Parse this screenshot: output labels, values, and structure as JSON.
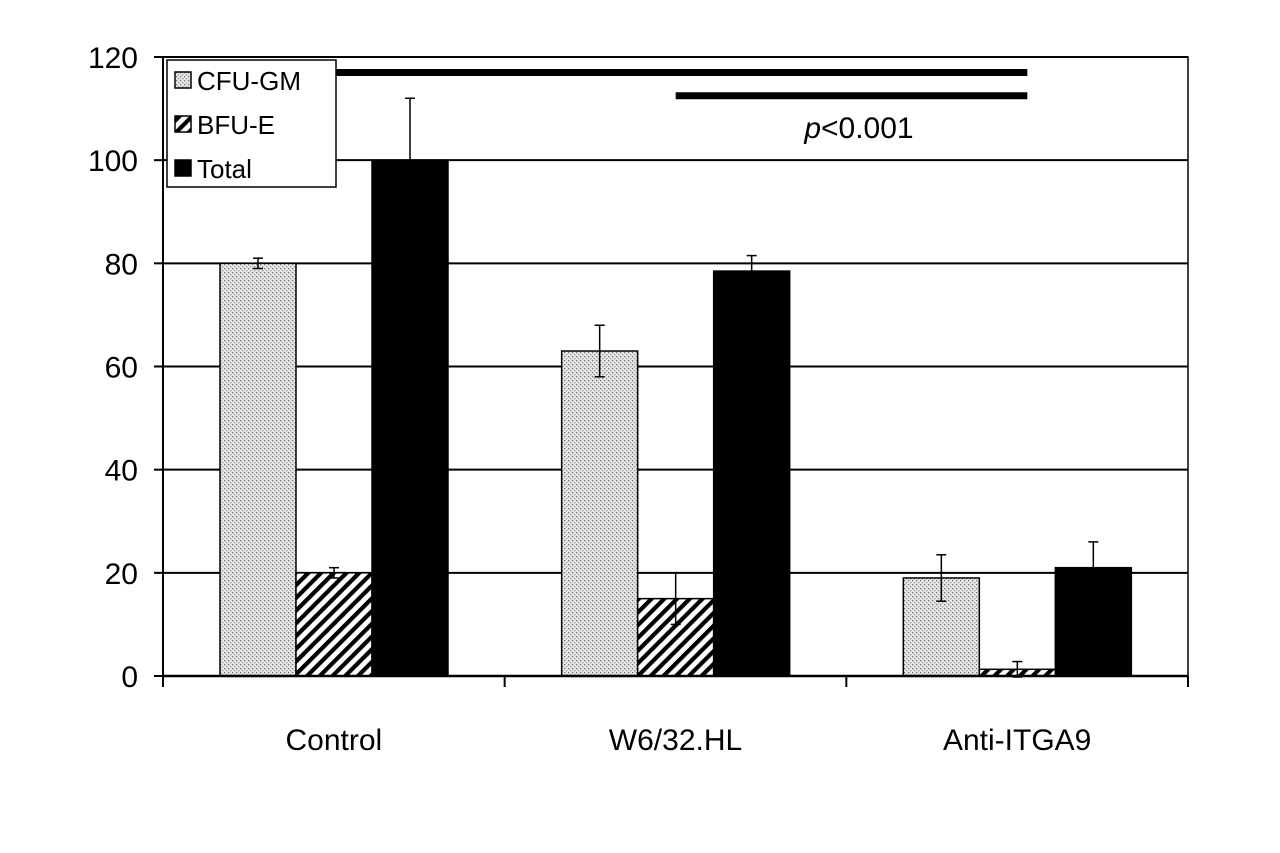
{
  "chart_data": {
    "type": "bar",
    "title": "",
    "xlabel": "",
    "ylabel": "",
    "categories": [
      "Control",
      "W6/32.HL",
      "Anti-ITGA9"
    ],
    "ylim": [
      0,
      120
    ],
    "yticks": [
      0,
      20,
      40,
      60,
      80,
      100,
      120
    ],
    "grid": "horizontal",
    "legend": "top-left",
    "series": [
      {
        "name": "CFU-GM",
        "pattern": "dotted",
        "color": "#d9d9d9",
        "values": [
          80,
          63,
          19
        ],
        "errors": [
          1,
          5,
          4.5
        ]
      },
      {
        "name": "BFU-E",
        "pattern": "diagonal-hatch",
        "color": "#000000",
        "values": [
          20,
          15,
          1.3
        ],
        "errors": [
          1,
          5,
          1.5
        ]
      },
      {
        "name": "Total",
        "pattern": "solid",
        "color": "#000000",
        "values": [
          100,
          78.5,
          21
        ],
        "errors": [
          12,
          3,
          5
        ]
      }
    ],
    "annotations": [
      {
        "type": "significance-bar",
        "from_category": "Control",
        "to_category": "Anti-ITGA9",
        "level": 117
      },
      {
        "type": "significance-bar",
        "from_category": "W6/32.HL",
        "to_category": "Anti-ITGA9",
        "level": 112.5
      },
      {
        "type": "text",
        "text_italic": "p",
        "text": "<0.001",
        "near_category": "W6/32.HL"
      }
    ]
  }
}
